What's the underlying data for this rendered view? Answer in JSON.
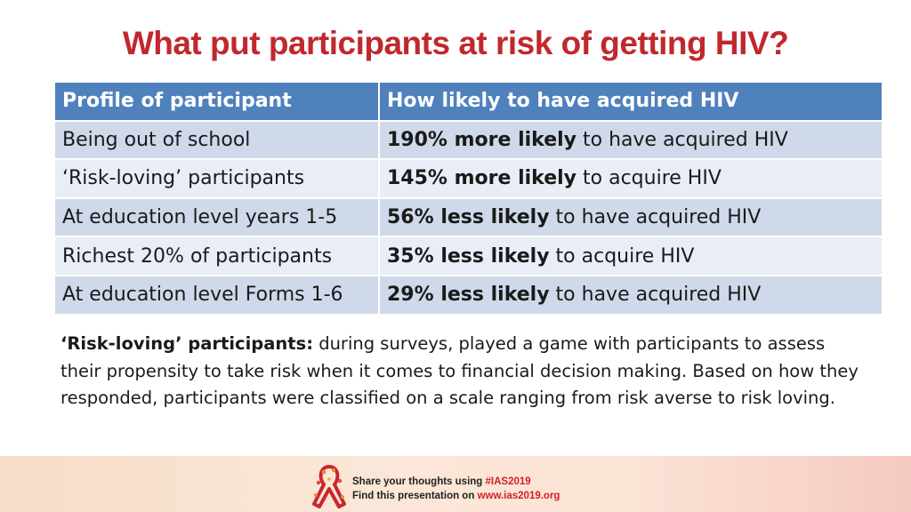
{
  "title": "What put participants at risk of getting HIV?",
  "table": {
    "headers": [
      "Profile of participant",
      "How likely to have acquired HIV"
    ],
    "rows": [
      {
        "profile": "Being out of school",
        "likelihood_bold": "190% more likely",
        "likelihood_rest": " to have acquired HIV"
      },
      {
        "profile": "‘Risk-loving’ participants",
        "likelihood_bold": "145% more likely",
        "likelihood_rest": " to acquire HIV"
      },
      {
        "profile": "At education level years 1-5",
        "likelihood_bold": "56% less likely",
        "likelihood_rest": " to have acquired HIV"
      },
      {
        "profile": "Richest 20% of participants",
        "likelihood_bold": "35% less likely",
        "likelihood_rest": " to acquire HIV"
      },
      {
        "profile": "At education level Forms 1-6",
        "likelihood_bold": "29% less likely",
        "likelihood_rest": " to have acquired HIV"
      }
    ]
  },
  "note": {
    "term": "‘Risk-loving’ participants:",
    "text": " during surveys, played a game with participants to assess their propensity to take risk when it comes to financial decision making. Based on how they responded, participants were classified on a scale ranging from risk averse to risk loving."
  },
  "footer": {
    "line1_prefix": "Share your thoughts using ",
    "line1_hashtag": "#IAS2019",
    "line2_prefix": "Find this presentation on ",
    "line2_url": "www.ias2019.org",
    "logo_icon": "ribbon-logo-icon",
    "colors": {
      "accent": "#d11f26",
      "ribbon_red": "#c8272d",
      "ribbon_orange": "#e8893a"
    }
  },
  "colors": {
    "title": "#c0282d",
    "header_bg": "#4f81bd",
    "row_odd": "#cfd9ea",
    "row_even": "#e9eef6"
  }
}
